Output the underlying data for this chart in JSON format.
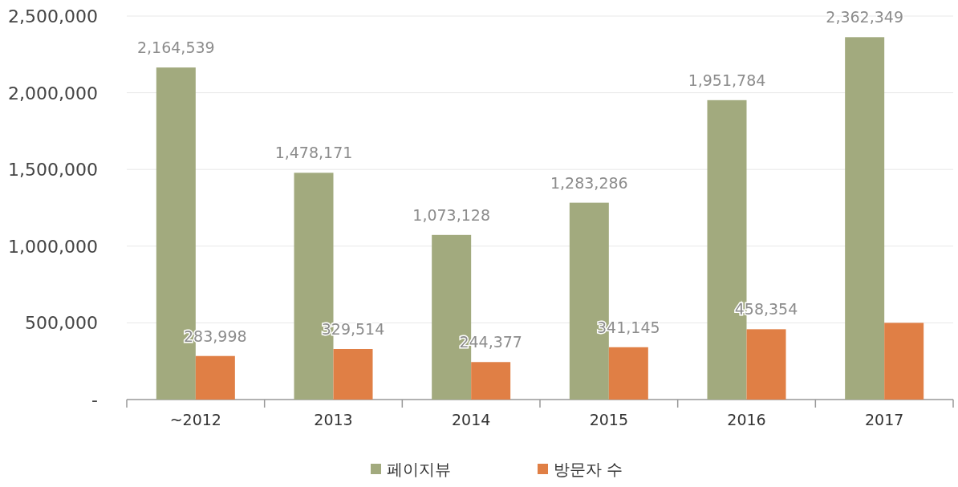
{
  "chart_data": {
    "type": "bar",
    "categories": [
      "~2012",
      "2013",
      "2014",
      "2015",
      "2016",
      "2017"
    ],
    "series": [
      {
        "name": "페이지뷰",
        "color": "#a2aa7e",
        "values": [
          2164539,
          1478171,
          1073128,
          1283286,
          1951784,
          2362349
        ],
        "value_labels": [
          "2,164,539",
          "1,478,171",
          "1,073,128",
          "1,283,286",
          "1,951,784",
          "2,362,349"
        ]
      },
      {
        "name": "방문자 수",
        "color": "#e07f45",
        "values": [
          283998,
          329514,
          244377,
          341145,
          458354,
          500000
        ],
        "value_labels": [
          "283,998",
          "329,514",
          "244,377",
          "341,145",
          "458,354",
          null
        ]
      }
    ],
    "ylim": [
      0,
      2500000
    ],
    "yticks": [
      {
        "value": 0,
        "label": "-"
      },
      {
        "value": 500000,
        "label": "500,000"
      },
      {
        "value": 1000000,
        "label": "1,000,000"
      },
      {
        "value": 1500000,
        "label": "1,500,000"
      },
      {
        "value": 2000000,
        "label": "2,000,000"
      },
      {
        "value": 2500000,
        "label": "2,500,000"
      }
    ],
    "grid": "y",
    "legend": "bottom"
  }
}
